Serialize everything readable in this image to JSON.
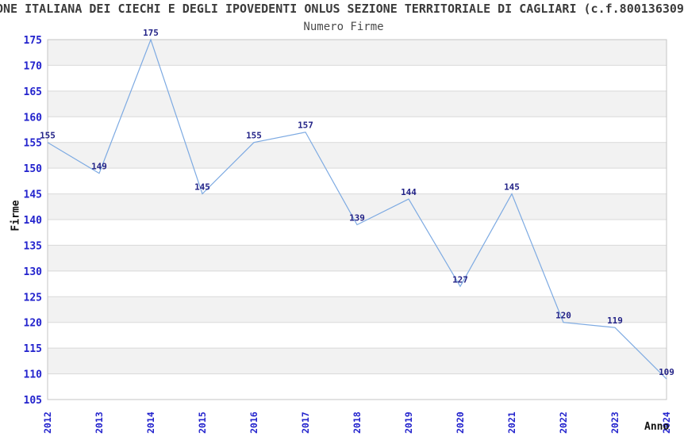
{
  "header": {
    "title": "ONE ITALIANA DEI CIECHI E DEGLI IPOVEDENTI ONLUS SEZIONE TERRITORIALE DI CAGLIARI (c.f.800136309"
  },
  "chart_data": {
    "type": "line",
    "title": "Numero Firme",
    "xlabel": "Anno",
    "ylabel": "Firme",
    "categories": [
      "2012",
      "2013",
      "2014",
      "2015",
      "2016",
      "2017",
      "2018",
      "2019",
      "2020",
      "2021",
      "2022",
      "2023",
      "2024"
    ],
    "values": [
      155,
      149,
      175,
      145,
      155,
      157,
      139,
      144,
      127,
      145,
      120,
      119,
      109
    ],
    "ylim": [
      105,
      175
    ],
    "ytick_step": 5,
    "grid": true,
    "alternating_bands": true,
    "legend": "none",
    "colors": {
      "line": "#7daae2",
      "tick_label": "#2323cd",
      "data_label": "#232387",
      "band": "#f2f2f2",
      "grid": "#d9d9d9",
      "border": "#c4c4c4",
      "title": "#3b3b3b",
      "subtitle": "#4a4a4a",
      "axis_title": "#111111"
    }
  }
}
